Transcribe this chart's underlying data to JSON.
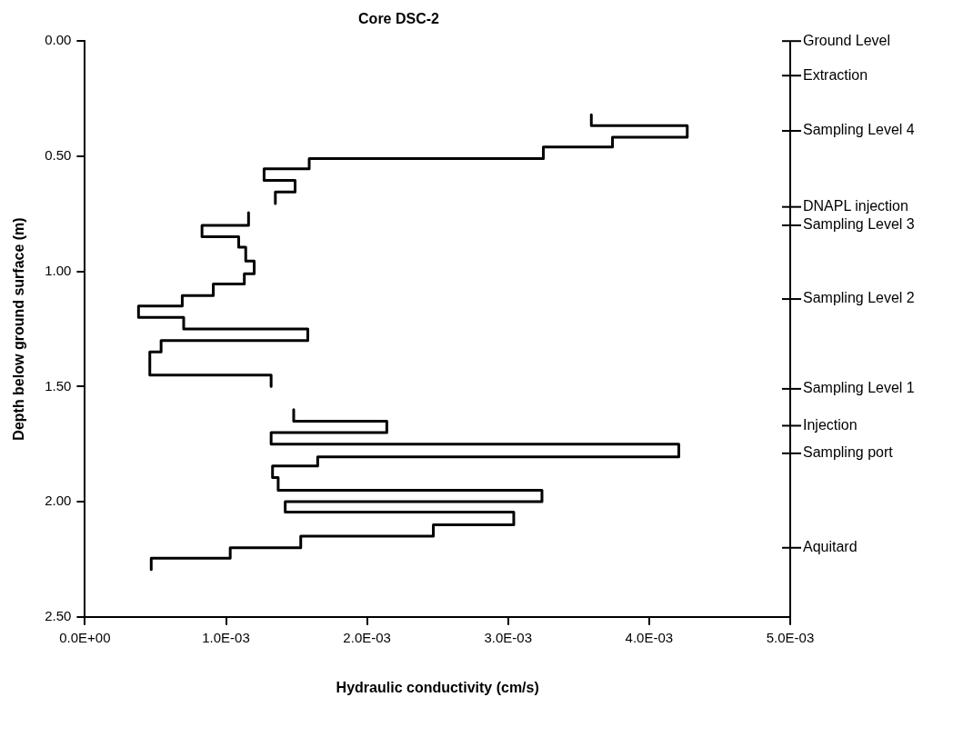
{
  "chart_data": {
    "type": "line",
    "title": "Core DSC-2",
    "xlabel": "Hydraulic conductivity (cm/s)",
    "ylabel": "Depth below ground surface (m)",
    "xlim": [
      0,
      0.005
    ],
    "xticks": [
      {
        "value": 0,
        "label": "0.0E+00"
      },
      {
        "value": 0.001,
        "label": "1.0E-03"
      },
      {
        "value": 0.002,
        "label": "2.0E-03"
      },
      {
        "value": 0.003,
        "label": "3.0E-03"
      },
      {
        "value": 0.004,
        "label": "4.0E-03"
      },
      {
        "value": 0.005,
        "label": "5.0E-03"
      }
    ],
    "ylim": [
      2.5,
      0
    ],
    "yticks": [
      {
        "value": 0,
        "label": "0.00"
      },
      {
        "value": 0.5,
        "label": "0.50"
      },
      {
        "value": 1,
        "label": "1.00"
      },
      {
        "value": 1.5,
        "label": "1.50"
      },
      {
        "value": 2,
        "label": "2.00"
      },
      {
        "value": 2.5,
        "label": "2.50"
      }
    ],
    "ref_lines": [
      {
        "axis": "y",
        "value": 0,
        "label": "Ground Level"
      },
      {
        "axis": "y",
        "value": 0.15,
        "label": "Extraction"
      },
      {
        "axis": "y",
        "value": 0.39,
        "label": "Sampling Level 4"
      },
      {
        "axis": "y",
        "value": 0.72,
        "label": "DNAPL injection"
      },
      {
        "axis": "y",
        "value": 0.8,
        "label": "Sampling Level 3"
      },
      {
        "axis": "y",
        "value": 1.12,
        "label": "Sampling Level 2"
      },
      {
        "axis": "y",
        "value": 1.51,
        "label": "Sampling Level 1"
      },
      {
        "axis": "y",
        "value": 1.67,
        "label": "Injection"
      },
      {
        "axis": "y",
        "value": 1.79,
        "label": "Sampling port"
      },
      {
        "axis": "y",
        "value": 2.2,
        "label": "Aquitard"
      }
    ],
    "grid": false,
    "legend": false,
    "marker": "none",
    "line_style": "solid",
    "series": [
      {
        "color": "#000000",
        "x": [
          0.00359,
          0.00359,
          0.00427,
          0.00427,
          0.00374,
          0.00374,
          0.00325,
          0.00325,
          0.00159,
          0.00159,
          0.00127,
          0.00127,
          0.00149,
          0.00149,
          0.00135,
          0.00135
        ],
        "values": [
          0.32,
          0.367,
          0.367,
          0.417,
          0.417,
          0.46,
          0.46,
          0.51,
          0.51,
          0.555,
          0.555,
          0.605,
          0.605,
          0.655,
          0.655,
          0.705
        ]
      },
      {
        "color": "#000000",
        "x": [
          0.00116,
          0.00116,
          0.00083,
          0.00083,
          0.00109,
          0.00109,
          0.00114,
          0.00114,
          0.0012,
          0.0012,
          0.00113,
          0.00113,
          0.00091,
          0.00091,
          0.00069,
          0.00069,
          0.00038,
          0.00038,
          0.0007,
          0.0007,
          0.00158,
          0.00158,
          0.00054,
          0.00054,
          0.00046,
          0.00046,
          0.00132,
          0.00132
        ],
        "values": [
          0.745,
          0.8,
          0.8,
          0.85,
          0.85,
          0.895,
          0.895,
          0.955,
          0.955,
          1.01,
          1.01,
          1.055,
          1.055,
          1.105,
          1.105,
          1.15,
          1.15,
          1.2,
          1.2,
          1.25,
          1.25,
          1.3,
          1.3,
          1.35,
          1.35,
          1.45,
          1.45,
          1.5
        ]
      },
      {
        "color": "#000000",
        "x": [
          0.00148,
          0.00148,
          0.00214,
          0.00214,
          0.00132,
          0.00132,
          0.00421,
          0.00421,
          0.00165,
          0.00165,
          0.00133,
          0.00133,
          0.00137,
          0.00137,
          0.00324,
          0.00324,
          0.00142,
          0.00142,
          0.00304,
          0.00304,
          0.00247,
          0.00247,
          0.00153,
          0.00153,
          0.00103,
          0.00103,
          0.00047,
          0.00047
        ],
        "values": [
          1.6,
          1.65,
          1.65,
          1.7,
          1.7,
          1.75,
          1.75,
          1.805,
          1.805,
          1.845,
          1.845,
          1.895,
          1.895,
          1.95,
          1.95,
          2.0,
          2.0,
          2.045,
          2.045,
          2.1,
          2.1,
          2.15,
          2.15,
          2.2,
          2.2,
          2.245,
          2.245,
          2.295
        ]
      }
    ]
  }
}
